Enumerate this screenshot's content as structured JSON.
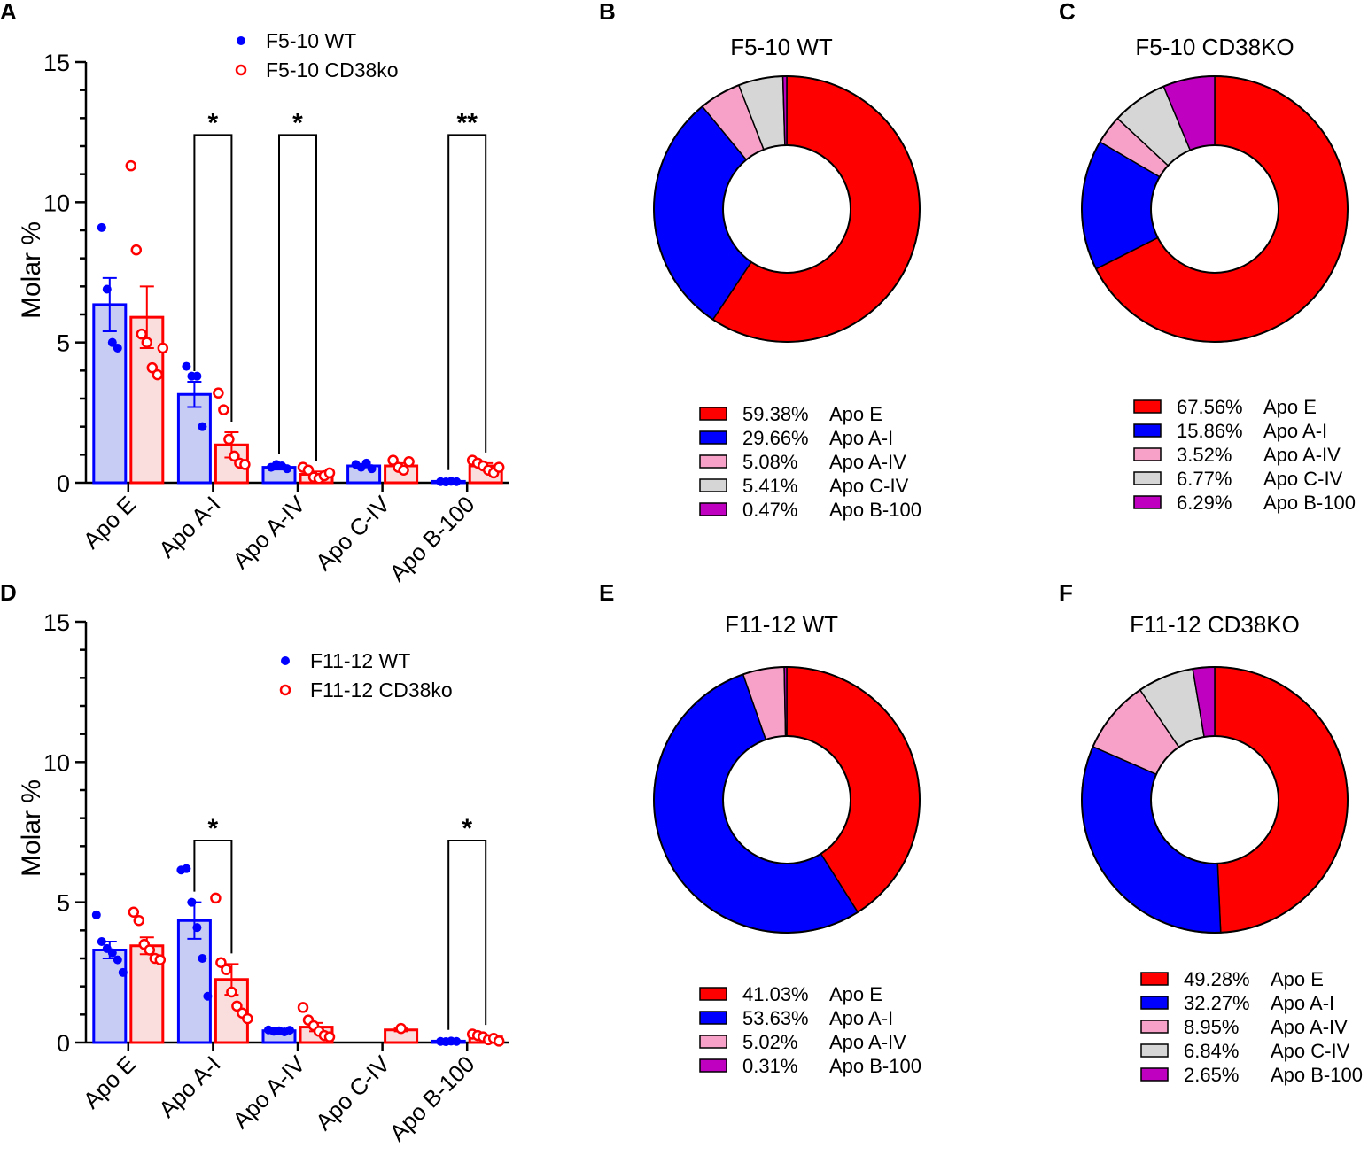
{
  "chart_data": [
    {
      "id": "A",
      "panel": "A",
      "type": "bar",
      "ylabel": "Molar %",
      "ylim": [
        0,
        15
      ],
      "yticks": [
        0,
        5,
        10,
        15
      ],
      "categories": [
        "Apo E",
        "Apo A-I",
        "Apo A-IV",
        "Apo C-IV",
        "Apo B-100"
      ],
      "colors": {
        "wt": "#0000ff",
        "ko": "#ff0000",
        "wt_fill": "#c7ccf5",
        "ko_fill": "#fadede"
      },
      "legend_position": "top",
      "series": [
        {
          "name": "F5-10 WT",
          "marker": "filled-circle",
          "values": [
            6.35,
            3.15,
            0.55,
            0.6,
            0.05
          ],
          "errors": [
            0.95,
            0.45,
            0.08,
            0.05,
            0.02
          ],
          "points": [
            [
              9.1,
              6.9,
              5.0,
              4.8
            ],
            [
              4.15,
              3.8,
              3.8,
              2.0
            ],
            [
              0.55,
              0.65,
              0.6,
              0.5
            ],
            [
              0.65,
              0.55,
              0.7,
              0.5
            ],
            [
              0.04,
              0.03,
              0.05,
              0.04
            ]
          ]
        },
        {
          "name": "F5-10 CD38ko",
          "marker": "open-circle",
          "values": [
            5.9,
            1.35,
            0.3,
            0.6,
            0.6
          ],
          "errors": [
            1.1,
            0.45,
            0.1,
            0.1,
            0.1
          ],
          "points": [
            [
              11.3,
              8.3,
              5.3,
              5.0,
              4.1,
              3.85,
              4.8
            ],
            [
              3.2,
              2.6,
              1.55,
              0.95,
              0.7,
              0.65
            ],
            [
              0.55,
              0.45,
              0.2,
              0.15,
              0.25,
              0.35
            ],
            [
              0.8,
              0.55,
              0.45,
              0.75
            ],
            [
              0.8,
              0.7,
              0.6,
              0.45,
              0.35,
              0.55
            ]
          ]
        }
      ],
      "significance": [
        {
          "category": "Apo A-I",
          "label": "*",
          "level": 12.4
        },
        {
          "category": "Apo A-IV",
          "label": "*",
          "level": 12.4
        },
        {
          "category": "Apo B-100",
          "label": "**",
          "level": 12.4
        }
      ]
    },
    {
      "id": "D",
      "panel": "D",
      "type": "bar",
      "ylabel": "Molar %",
      "ylim": [
        0,
        15
      ],
      "yticks": [
        0,
        5,
        10,
        15
      ],
      "categories": [
        "Apo E",
        "Apo A-I",
        "Apo A-IV",
        "Apo C-IV",
        "Apo B-100"
      ],
      "colors": {
        "wt": "#0000ff",
        "ko": "#ff0000",
        "wt_fill": "#c7ccf5",
        "ko_fill": "#fadede"
      },
      "legend_position": "top",
      "series": [
        {
          "name": "F11-12 WT",
          "marker": "filled-circle",
          "values": [
            3.3,
            4.35,
            0.42,
            null,
            0.05
          ],
          "errors": [
            0.3,
            0.65,
            0.03,
            null,
            0.02
          ],
          "points": [
            [
              4.55,
              3.6,
              3.35,
              3.2,
              2.95,
              2.5
            ],
            [
              6.15,
              6.2,
              5.0,
              4.1,
              3.0,
              1.65
            ],
            [
              0.45,
              0.4,
              0.42,
              0.38,
              0.44
            ],
            [],
            [
              0.04,
              0.03,
              0.05,
              0.04
            ]
          ]
        },
        {
          "name": "F11-12 CD38ko",
          "marker": "open-circle",
          "values": [
            3.45,
            2.25,
            0.55,
            0.45,
            0.2
          ],
          "errors": [
            0.3,
            0.55,
            0.15,
            0.05,
            0.05
          ],
          "points": [
            [
              4.65,
              4.35,
              3.5,
              3.3,
              3.0,
              2.95
            ],
            [
              5.15,
              2.85,
              2.6,
              1.8,
              1.3,
              1.05,
              0.85
            ],
            [
              1.25,
              0.8,
              0.6,
              0.4,
              0.25,
              0.2
            ],
            [
              0.5
            ],
            [
              0.3,
              0.25,
              0.2,
              0.1,
              0.15,
              0.05
            ]
          ]
        }
      ],
      "significance": [
        {
          "category": "Apo A-I",
          "label": "*",
          "level": 7.2
        },
        {
          "category": "Apo B-100",
          "label": "*",
          "level": 7.2
        }
      ]
    },
    {
      "id": "B",
      "panel": "B",
      "type": "pie",
      "donut": true,
      "title": "F5-10 WT",
      "slices": [
        {
          "label": "Apo E",
          "pct_label": "59.38%",
          "value": 59.38,
          "color": "#ff0000"
        },
        {
          "label": "Apo A-I",
          "pct_label": "29.66%",
          "value": 29.66,
          "color": "#0000ff"
        },
        {
          "label": "Apo A-IV",
          "pct_label": "5.08%",
          "value": 5.08,
          "color": "#f7a1c9"
        },
        {
          "label": "Apo C-IV",
          "pct_label": "5.41%",
          "value": 5.41,
          "color": "#d6d6d6"
        },
        {
          "label": "Apo B-100",
          "pct_label": "0.47%",
          "value": 0.47,
          "color": "#c000c0"
        }
      ]
    },
    {
      "id": "C",
      "panel": "C",
      "type": "pie",
      "donut": true,
      "title": "F5-10 CD38KO",
      "slices": [
        {
          "label": "Apo E",
          "pct_label": "67.56%",
          "value": 67.56,
          "color": "#ff0000"
        },
        {
          "label": "Apo A-I",
          "pct_label": "15.86%",
          "value": 15.86,
          "color": "#0000ff"
        },
        {
          "label": "Apo A-IV",
          "pct_label": "3.52%",
          "value": 3.52,
          "color": "#f7a1c9"
        },
        {
          "label": "Apo C-IV",
          "pct_label": "6.77%",
          "value": 6.77,
          "color": "#d6d6d6"
        },
        {
          "label": "Apo B-100",
          "pct_label": "6.29%",
          "value": 6.29,
          "color": "#c000c0"
        }
      ]
    },
    {
      "id": "E",
      "panel": "E",
      "type": "pie",
      "donut": true,
      "title": "F11-12 WT",
      "slices": [
        {
          "label": "Apo E",
          "pct_label": "41.03%",
          "value": 41.03,
          "color": "#ff0000"
        },
        {
          "label": "Apo A-I",
          "pct_label": "53.63%",
          "value": 53.63,
          "color": "#0000ff"
        },
        {
          "label": "Apo A-IV",
          "pct_label": "5.02%",
          "value": 5.02,
          "color": "#f7a1c9"
        },
        {
          "label": "Apo B-100",
          "pct_label": "0.31%",
          "value": 0.31,
          "color": "#c000c0"
        }
      ]
    },
    {
      "id": "F",
      "panel": "F",
      "type": "pie",
      "donut": true,
      "title": "F11-12 CD38KO",
      "slices": [
        {
          "label": "Apo E",
          "pct_label": "49.28%",
          "value": 49.28,
          "color": "#ff0000"
        },
        {
          "label": "Apo A-I",
          "pct_label": "32.27%",
          "value": 32.27,
          "color": "#0000ff"
        },
        {
          "label": "Apo A-IV",
          "pct_label": "8.95%",
          "value": 8.95,
          "color": "#f7a1c9"
        },
        {
          "label": "Apo C-IV",
          "pct_label": "6.84%",
          "value": 6.84,
          "color": "#d6d6d6"
        },
        {
          "label": "Apo B-100",
          "pct_label": "2.65%",
          "value": 2.65,
          "color": "#c000c0"
        }
      ]
    }
  ]
}
